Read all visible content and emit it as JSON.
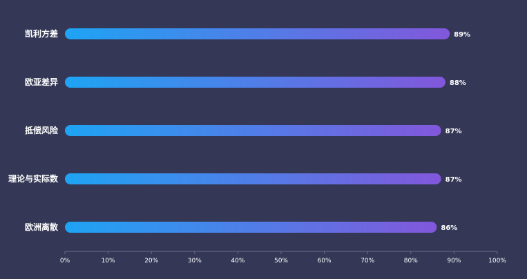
{
  "chart_data": {
    "type": "bar",
    "orientation": "horizontal",
    "categories": [
      "凯利方差",
      "欧亚差异",
      "抵偿风险",
      "理论与实际数",
      "欧洲离散"
    ],
    "values": [
      89,
      88,
      87,
      87,
      86
    ],
    "value_labels": [
      "89%",
      "88%",
      "87%",
      "87%",
      "86%"
    ],
    "xlim": [
      0,
      100
    ],
    "x_ticks": [
      "0%",
      "10%",
      "20%",
      "30%",
      "40%",
      "50%",
      "60%",
      "70%",
      "80%",
      "90%",
      "100%"
    ],
    "title": "",
    "xlabel": "",
    "ylabel": "",
    "grid": false,
    "legend": "none",
    "colors": {
      "background": "#343856",
      "bar_gradient_start": "#1ea4f4",
      "bar_gradient_end": "#8257db",
      "axis_line": "#6a6e88",
      "text": "#ffffff"
    }
  }
}
